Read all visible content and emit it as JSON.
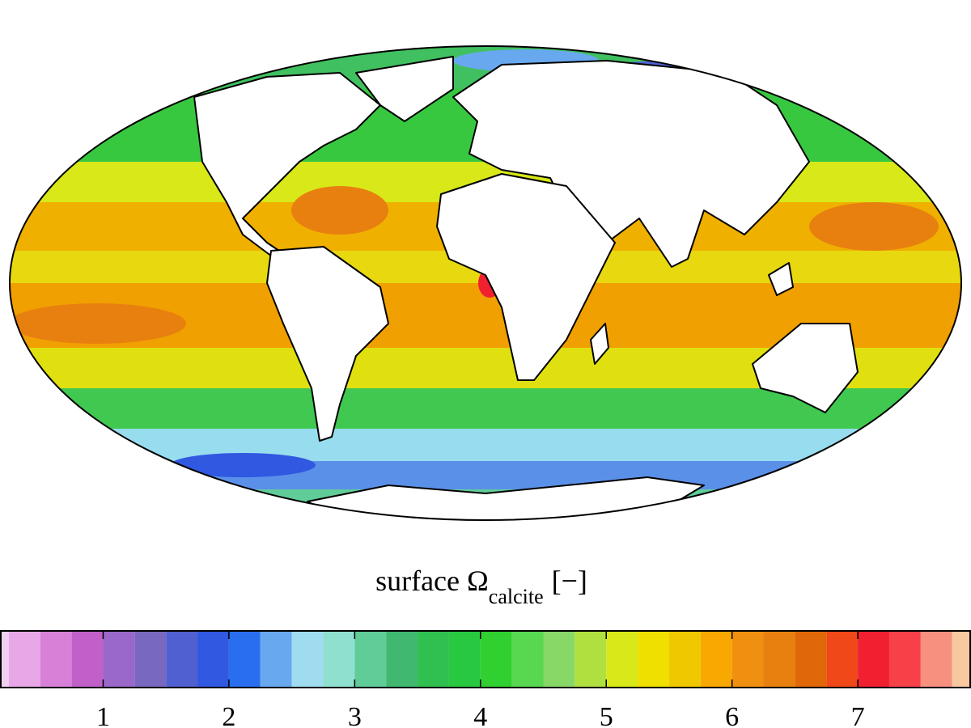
{
  "colorbar": {
    "title": {
      "main": "surface Ω",
      "subscript": "calcite",
      "suffix": "[−]"
    },
    "lim": [
      0.18,
      7.9
    ],
    "ticks": [
      1,
      2,
      3,
      4,
      5,
      6,
      7
    ],
    "boundaries": [
      0,
      0.25,
      0.5,
      0.75,
      1,
      1.25,
      1.5,
      1.75,
      2,
      2.25,
      2.5,
      2.75,
      3,
      3.25,
      3.5,
      3.75,
      4,
      4.25,
      4.5,
      4.75,
      5,
      5.25,
      5.5,
      5.75,
      6,
      6.25,
      6.5,
      6.75,
      7,
      7.25,
      7.5,
      7.75,
      8
    ],
    "colors": [
      "#f0d0f0",
      "#e8a8e8",
      "#d880d8",
      "#c060c8",
      "#9a68c8",
      "#7868c0",
      "#5060d0",
      "#3058e0",
      "#2a6ef0",
      "#68a8ee",
      "#a0dcf0",
      "#90e0d0",
      "#60cc98",
      "#40b870",
      "#30c050",
      "#28c840",
      "#30d030",
      "#58d850",
      "#88d868",
      "#b0e040",
      "#d8e818",
      "#f0e000",
      "#f0c800",
      "#f8a800",
      "#f09010",
      "#e88010",
      "#e06808",
      "#f04818",
      "#f02030",
      "#f84048",
      "#f89080",
      "#f8c8a0"
    ]
  }
}
